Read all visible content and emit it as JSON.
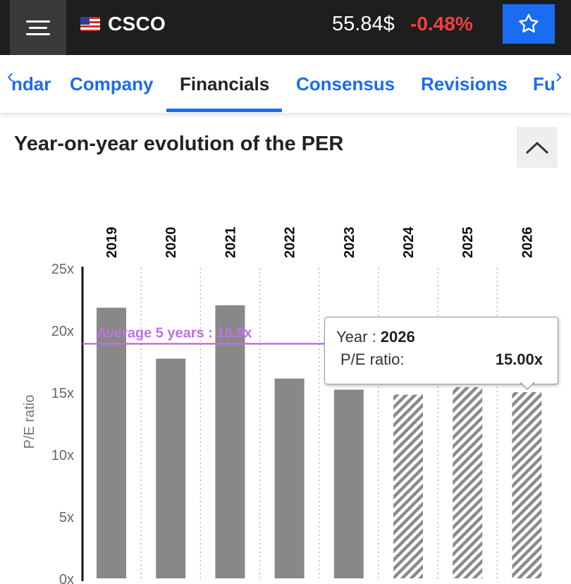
{
  "header": {
    "ticker": "CSCO",
    "price": "55.84$",
    "change": "-0.48%",
    "icons": {
      "menu": "menu-icon",
      "flag": "us-flag-icon",
      "favorite": "star-outline-icon"
    }
  },
  "tabs": [
    {
      "label": "ndar"
    },
    {
      "label": "Company"
    },
    {
      "label": "Financials"
    },
    {
      "label": "Consensus"
    },
    {
      "label": "Revisions"
    },
    {
      "label": "Fu"
    }
  ],
  "active_tab": "Financials",
  "section": {
    "title": "Year-on-year evolution of the PER"
  },
  "tooltip": {
    "year_label": "Year : ",
    "year": "2026",
    "metric_label": "P/E ratio:",
    "metric_value": "15.00x"
  },
  "colors": {
    "accent": "#1a6cf0",
    "negative": "#f24040",
    "bar": "#888888",
    "average_line": "#c070e0"
  },
  "chart_data": {
    "type": "bar",
    "categories": [
      "2019",
      "2020",
      "2021",
      "2022",
      "2023",
      "2024",
      "2025",
      "2026"
    ],
    "values": [
      21.8,
      17.7,
      22.0,
      16.1,
      15.2,
      14.8,
      15.4,
      15.0
    ],
    "forecast_from_index": 5,
    "ylabel": "P/E ratio",
    "ylim": [
      0,
      25
    ],
    "yticks": [
      0,
      5,
      10,
      15,
      20,
      25
    ],
    "ytick_labels": [
      "0x",
      "5x",
      "10x",
      "15x",
      "20x",
      "25x"
    ],
    "average": {
      "label": "Average 5 years : 18.9x",
      "value": 18.9
    },
    "category_position": "top"
  }
}
